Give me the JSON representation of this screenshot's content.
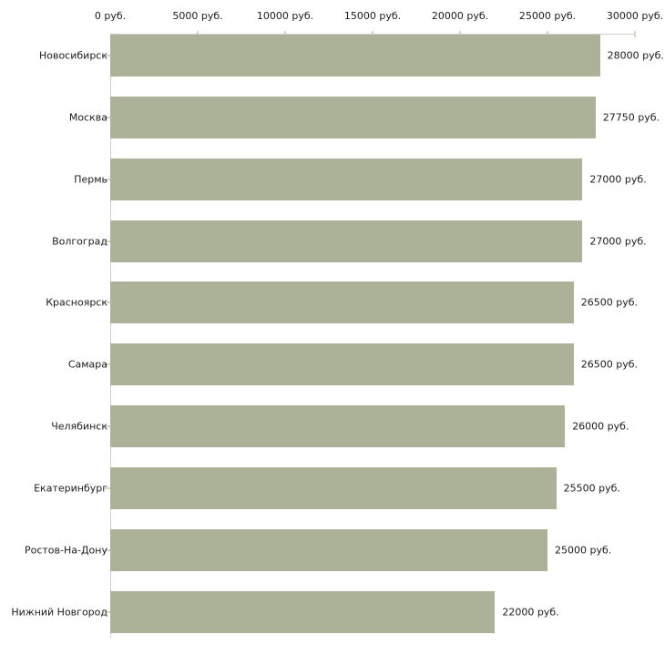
{
  "chart_data": {
    "type": "bar",
    "orientation": "horizontal",
    "title": "",
    "xlabel": "",
    "ylabel": "",
    "xlim": [
      0,
      30000
    ],
    "grid": false,
    "legend": false,
    "x_ticks": [
      {
        "value": 0,
        "label": "0 руб."
      },
      {
        "value": 5000,
        "label": "5000 руб."
      },
      {
        "value": 10000,
        "label": "10000 руб."
      },
      {
        "value": 15000,
        "label": "15000 руб."
      },
      {
        "value": 20000,
        "label": "20000 руб."
      },
      {
        "value": 25000,
        "label": "25000 руб."
      },
      {
        "value": 30000,
        "label": "30000 руб."
      }
    ],
    "categories": [
      "Новосибирск",
      "Москва",
      "Пермь",
      "Волгоград",
      "Красноярск",
      "Самара",
      "Челябинск",
      "Екатеринбург",
      "Ростов-На-Дону",
      "Нижний Новгород"
    ],
    "values": [
      28000,
      27750,
      27000,
      27000,
      26500,
      26500,
      26000,
      25500,
      25000,
      22000
    ],
    "value_labels": [
      "28000 руб.",
      "27750 руб.",
      "27000 руб.",
      "27000 руб.",
      "26500 руб.",
      "26500 руб.",
      "26000 руб.",
      "25500 руб.",
      "25000 руб.",
      "22000 руб."
    ],
    "colors": {
      "bar": "#abb297",
      "axis_line": "#cccccc",
      "tick_mark": "#d9d5bc",
      "text": "#1c1c1c",
      "background": "#ffffff"
    }
  }
}
